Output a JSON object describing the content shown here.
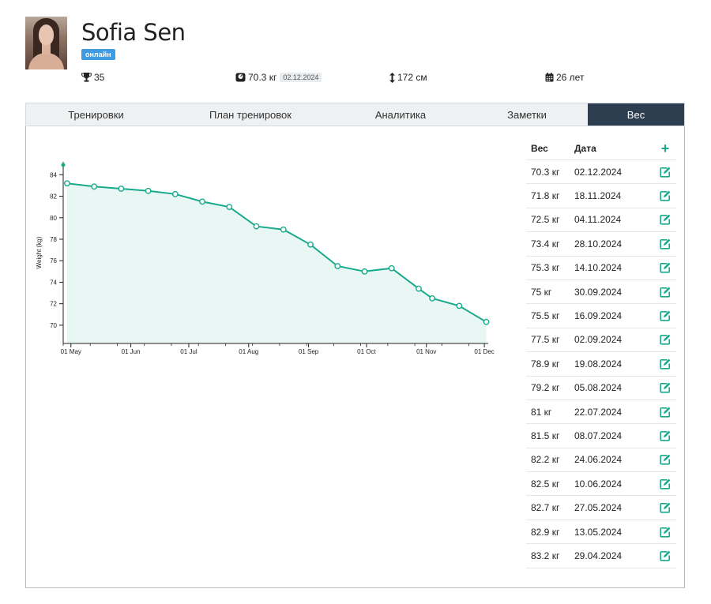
{
  "profile": {
    "name": "Sofia Sen",
    "status": "онлайн",
    "stats": {
      "trophies": "35",
      "weight": "70.3 кг",
      "weight_date": "02.12.2024",
      "height": "172 см",
      "age": "26 лет"
    },
    "icons": {
      "trophies": "trophy-icon",
      "weight": "scale-icon",
      "height": "height-arrow-icon",
      "age": "calendar-icon"
    }
  },
  "tabs": [
    {
      "label": "Тренировки",
      "active": false
    },
    {
      "label": "План тренировок",
      "active": false
    },
    {
      "label": "Аналитика",
      "active": false
    },
    {
      "label": "Заметки",
      "active": false
    },
    {
      "label": "Вес",
      "active": true
    }
  ],
  "weight_table": {
    "headers": {
      "weight": "Вес",
      "date": "Дата"
    },
    "rows": [
      {
        "weight": "70.3 кг",
        "date": "02.12.2024"
      },
      {
        "weight": "71.8 кг",
        "date": "18.11.2024"
      },
      {
        "weight": "72.5 кг",
        "date": "04.11.2024"
      },
      {
        "weight": "73.4 кг",
        "date": "28.10.2024"
      },
      {
        "weight": "75.3 кг",
        "date": "14.10.2024"
      },
      {
        "weight": "75 кг",
        "date": "30.09.2024"
      },
      {
        "weight": "75.5 кг",
        "date": "16.09.2024"
      },
      {
        "weight": "77.5 кг",
        "date": "02.09.2024"
      },
      {
        "weight": "78.9 кг",
        "date": "19.08.2024"
      },
      {
        "weight": "79.2 кг",
        "date": "05.08.2024"
      },
      {
        "weight": "81 кг",
        "date": "22.07.2024"
      },
      {
        "weight": "81.5 кг",
        "date": "08.07.2024"
      },
      {
        "weight": "82.2 кг",
        "date": "24.06.2024"
      },
      {
        "weight": "82.5 кг",
        "date": "10.06.2024"
      },
      {
        "weight": "82.7 кг",
        "date": "27.05.2024"
      },
      {
        "weight": "82.9 кг",
        "date": "13.05.2024"
      },
      {
        "weight": "83.2 кг",
        "date": "29.04.2024"
      }
    ]
  },
  "colors": {
    "accent": "#19a98b",
    "fill": "#e9f7f4",
    "tab_active": "#2d3e50",
    "badge": "#3f9ae0"
  },
  "chart_data": {
    "type": "area",
    "title": "",
    "xlabel": "",
    "ylabel": "Weight (kg)",
    "x": [
      "2024-04-29",
      "2024-05-13",
      "2024-05-27",
      "2024-06-10",
      "2024-06-24",
      "2024-07-08",
      "2024-07-22",
      "2024-08-05",
      "2024-08-19",
      "2024-09-02",
      "2024-09-16",
      "2024-09-30",
      "2024-10-14",
      "2024-10-28",
      "2024-11-04",
      "2024-11-18",
      "2024-12-02"
    ],
    "y": [
      83.2,
      82.9,
      82.7,
      82.5,
      82.2,
      81.5,
      81,
      79.2,
      78.9,
      77.5,
      75.5,
      75,
      75.3,
      73.4,
      72.5,
      71.8,
      70.3
    ],
    "xlim": [
      "2024-04-27",
      "2024-12-03"
    ],
    "ylim": [
      68.3,
      85.2
    ],
    "x_ticks": [
      {
        "date": "2024-05-01",
        "label": "01 May"
      },
      {
        "date": "2024-06-01",
        "label": "01 Jun"
      },
      {
        "date": "2024-07-01",
        "label": "01 Jul"
      },
      {
        "date": "2024-08-01",
        "label": "01 Aug"
      },
      {
        "date": "2024-09-01",
        "label": "01 Sep"
      },
      {
        "date": "2024-10-01",
        "label": "01 Oct"
      },
      {
        "date": "2024-11-01",
        "label": "01 Nov"
      },
      {
        "date": "2024-12-01",
        "label": "01 Dec"
      }
    ],
    "y_ticks": [
      70,
      72,
      74,
      76,
      78,
      80,
      82,
      84
    ],
    "grid": false,
    "legend": "none"
  }
}
